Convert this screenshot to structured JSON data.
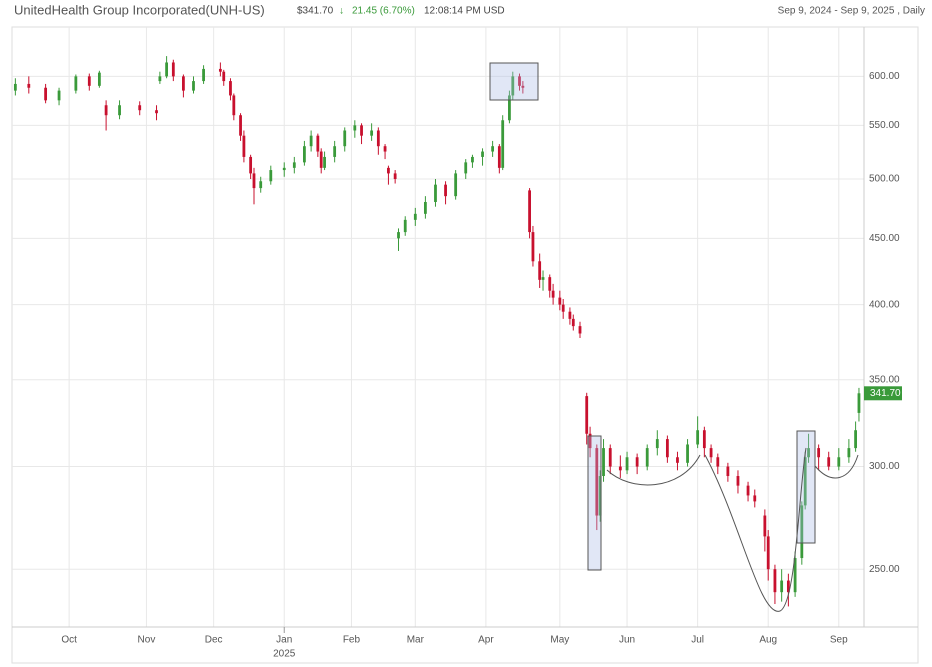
{
  "chart_data": {
    "type": "candlestick",
    "title": "UnitedHealth Group Incorporated(UNH-US)",
    "price": "$341.70",
    "change": "21.45 (6.70%)",
    "time": "12:08:14 PM USD",
    "range": "Sep 9, 2024 - Sep 9, 2025 , Daily",
    "last_price_label": "341.70",
    "up_color": "#3a9a3a",
    "down_color": "#c8102e",
    "log_scale": true,
    "grid": true,
    "x": [
      0,
      4,
      9,
      13,
      18,
      22,
      25,
      27,
      31,
      37,
      42,
      43,
      45,
      47,
      50,
      53,
      56,
      61,
      62,
      64,
      65,
      67,
      68,
      70,
      71,
      73,
      76,
      80,
      83,
      86,
      88,
      90,
      91,
      92,
      95,
      98,
      101,
      103,
      106,
      108,
      110,
      111,
      113,
      114,
      116,
      119,
      122,
      125,
      128,
      131,
      134,
      136,
      139,
      142,
      144,
      145,
      147,
      148,
      150,
      151,
      153,
      154,
      156,
      157,
      159,
      160,
      162,
      163,
      165,
      166,
      168,
      170,
      171,
      173,
      174,
      175,
      177,
      180,
      182,
      185,
      188,
      191,
      194,
      197,
      200,
      203,
      205,
      207,
      209,
      212,
      215,
      218,
      220,
      223,
      224,
      226,
      228,
      230,
      232,
      234,
      235,
      236,
      239,
      242,
      245,
      248,
      250,
      251
    ],
    "open": [
      585,
      592,
      588,
      575,
      585,
      600,
      590,
      570,
      560,
      570,
      565,
      595,
      600,
      615,
      600,
      585,
      595,
      608,
      605,
      595,
      580,
      560,
      540,
      520,
      505,
      492,
      498,
      508,
      510,
      515,
      530,
      540,
      525,
      510,
      520,
      530,
      545,
      550,
      540,
      545,
      530,
      510,
      505,
      450,
      455,
      465,
      470,
      480,
      495,
      485,
      505,
      515,
      520,
      525,
      530,
      510,
      555,
      580,
      600,
      590,
      490,
      455,
      432,
      418,
      420,
      410,
      405,
      400,
      395,
      390,
      385,
      340,
      318,
      310,
      275,
      295,
      310,
      300,
      298,
      305,
      300,
      310,
      315,
      305,
      302,
      312,
      320,
      310,
      305,
      300,
      295,
      290,
      285,
      275,
      265,
      250,
      240,
      245,
      240,
      255,
      280,
      305,
      310,
      305,
      300,
      305,
      310,
      330
    ],
    "high": [
      598,
      600,
      592,
      588,
      602,
      603,
      606,
      575,
      575,
      574,
      570,
      605,
      622,
      618,
      602,
      600,
      612,
      615,
      607,
      598,
      582,
      562,
      545,
      522,
      510,
      502,
      512,
      515,
      520,
      535,
      545,
      542,
      528,
      525,
      535,
      548,
      555,
      552,
      552,
      548,
      532,
      512,
      508,
      458,
      468,
      475,
      485,
      500,
      498,
      508,
      518,
      522,
      528,
      535,
      532,
      560,
      585,
      605,
      603,
      595,
      492,
      460,
      438,
      425,
      422,
      415,
      410,
      404,
      398,
      393,
      388,
      342,
      322,
      312,
      298,
      315,
      312,
      306,
      308,
      307,
      312,
      320,
      317,
      308,
      315,
      328,
      322,
      312,
      307,
      302,
      298,
      292,
      288,
      278,
      268,
      252,
      250,
      248,
      258,
      282,
      308,
      318,
      312,
      308,
      310,
      315,
      325,
      345
    ],
    "low": [
      580,
      582,
      572,
      570,
      582,
      585,
      588,
      545,
      556,
      560,
      555,
      592,
      598,
      595,
      578,
      582,
      592,
      600,
      590,
      575,
      555,
      535,
      515,
      500,
      478,
      488,
      495,
      502,
      505,
      512,
      525,
      520,
      505,
      508,
      515,
      525,
      538,
      532,
      535,
      522,
      518,
      495,
      496,
      440,
      452,
      460,
      466,
      476,
      478,
      482,
      500,
      510,
      512,
      520,
      505,
      508,
      552,
      575,
      585,
      582,
      450,
      428,
      412,
      410,
      405,
      400,
      396,
      390,
      386,
      382,
      377,
      312,
      305,
      268,
      272,
      292,
      296,
      294,
      296,
      296,
      298,
      306,
      302,
      298,
      300,
      310,
      305,
      302,
      296,
      292,
      286,
      282,
      279,
      258,
      245,
      235,
      236,
      234,
      238,
      252,
      278,
      302,
      298,
      298,
      298,
      302,
      308,
      325
    ],
    "close": [
      592,
      588,
      575,
      585,
      600,
      590,
      604,
      560,
      570,
      565,
      562,
      600,
      615,
      600,
      585,
      595,
      608,
      605,
      595,
      580,
      560,
      540,
      520,
      505,
      492,
      498,
      508,
      510,
      515,
      530,
      540,
      525,
      510,
      520,
      530,
      545,
      550,
      540,
      545,
      530,
      525,
      505,
      500,
      455,
      465,
      470,
      480,
      495,
      485,
      505,
      515,
      520,
      525,
      530,
      510,
      555,
      580,
      600,
      590,
      588,
      455,
      432,
      418,
      420,
      410,
      405,
      400,
      395,
      390,
      385,
      380,
      318,
      310,
      275,
      295,
      310,
      300,
      298,
      305,
      300,
      310,
      315,
      305,
      302,
      312,
      320,
      310,
      305,
      300,
      295,
      290,
      285,
      282,
      265,
      250,
      240,
      245,
      240,
      255,
      280,
      305,
      310,
      305,
      300,
      305,
      310,
      320,
      341.7
    ],
    "xlim": [
      -1,
      252.5
    ],
    "xticks": [
      {
        "value": 16,
        "label": "Oct"
      },
      {
        "value": 39,
        "label": "Nov"
      },
      {
        "value": 59,
        "label": "Dec"
      },
      {
        "value": 80,
        "label": "Jan"
      },
      {
        "value": 100,
        "label": "Feb"
      },
      {
        "value": 119,
        "label": "Mar"
      },
      {
        "value": 140,
        "label": "Apr"
      },
      {
        "value": 162,
        "label": "May"
      },
      {
        "value": 182,
        "label": "Jun"
      },
      {
        "value": 203,
        "label": "Jul"
      },
      {
        "value": 224,
        "label": "Aug"
      },
      {
        "value": 245,
        "label": "Sep"
      }
    ],
    "year_ticks": [
      {
        "value": 80,
        "label": "2025"
      }
    ],
    "ylim": [
      225.6,
      655
    ],
    "yticks": [
      {
        "value": 250,
        "label": "250.00"
      },
      {
        "value": 300,
        "label": "300.00"
      },
      {
        "value": 350,
        "label": "350.00"
      },
      {
        "value": 400,
        "label": "400.00"
      },
      {
        "value": 450,
        "label": "450.00"
      },
      {
        "value": 500,
        "label": "500.00"
      },
      {
        "value": 550,
        "label": "550.00"
      },
      {
        "value": 600,
        "label": "600.00"
      }
    ]
  }
}
